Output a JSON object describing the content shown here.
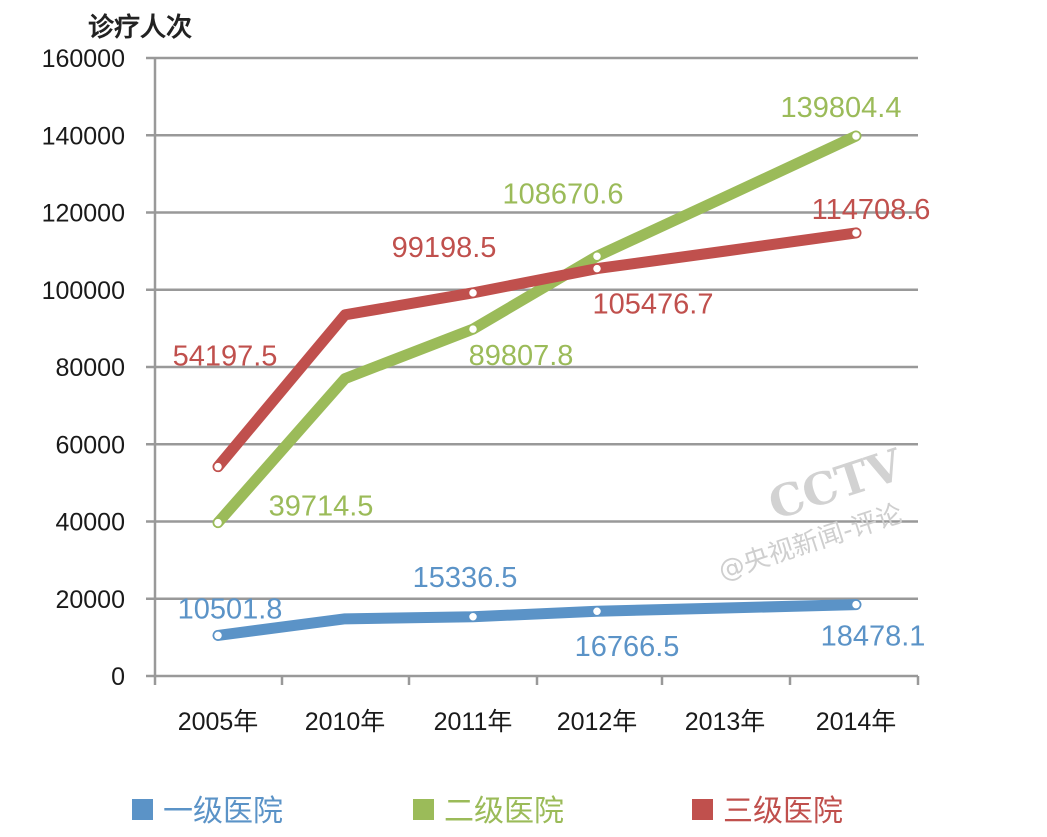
{
  "chart_data": {
    "type": "line",
    "title": "",
    "ylabel": "诊疗人次",
    "xlabel": "",
    "categories": [
      "2005年",
      "2010年",
      "2011年",
      "2012年",
      "2013年",
      "2014年"
    ],
    "ylim": [
      0,
      160000
    ],
    "yticks": [
      0,
      20000,
      40000,
      60000,
      80000,
      100000,
      120000,
      140000,
      160000
    ],
    "ytick_labels": [
      "0",
      "20000",
      "40000",
      "60000",
      "80000",
      "100000",
      "120000",
      "140000",
      "160000"
    ],
    "grid": true,
    "legend_position": "bottom",
    "series": [
      {
        "name": "一级医院",
        "color": "#5b93c7",
        "values": [
          10501.8,
          14800,
          15336.5,
          16766.5,
          17600,
          18478.1
        ],
        "labels": [
          "10501.8",
          null,
          "15336.5",
          "16766.5",
          null,
          "18478.1"
        ]
      },
      {
        "name": "二级医院",
        "color": "#9bbb59",
        "values": [
          39714.5,
          77000,
          89807.8,
          108670.6,
          124000,
          139804.4
        ],
        "labels": [
          "39714.5",
          null,
          "89807.8",
          "108670.6",
          null,
          "139804.4"
        ]
      },
      {
        "name": "三级医院",
        "color": "#c0504d",
        "values": [
          54197.5,
          93500,
          99198.5,
          105476.7,
          110000,
          114708.6
        ],
        "labels": [
          "54197.5",
          null,
          "99198.5",
          "105476.7",
          null,
          "114708.6"
        ]
      }
    ]
  },
  "watermark": {
    "brand": "CCTV",
    "source": "@央视新闻-评论"
  }
}
